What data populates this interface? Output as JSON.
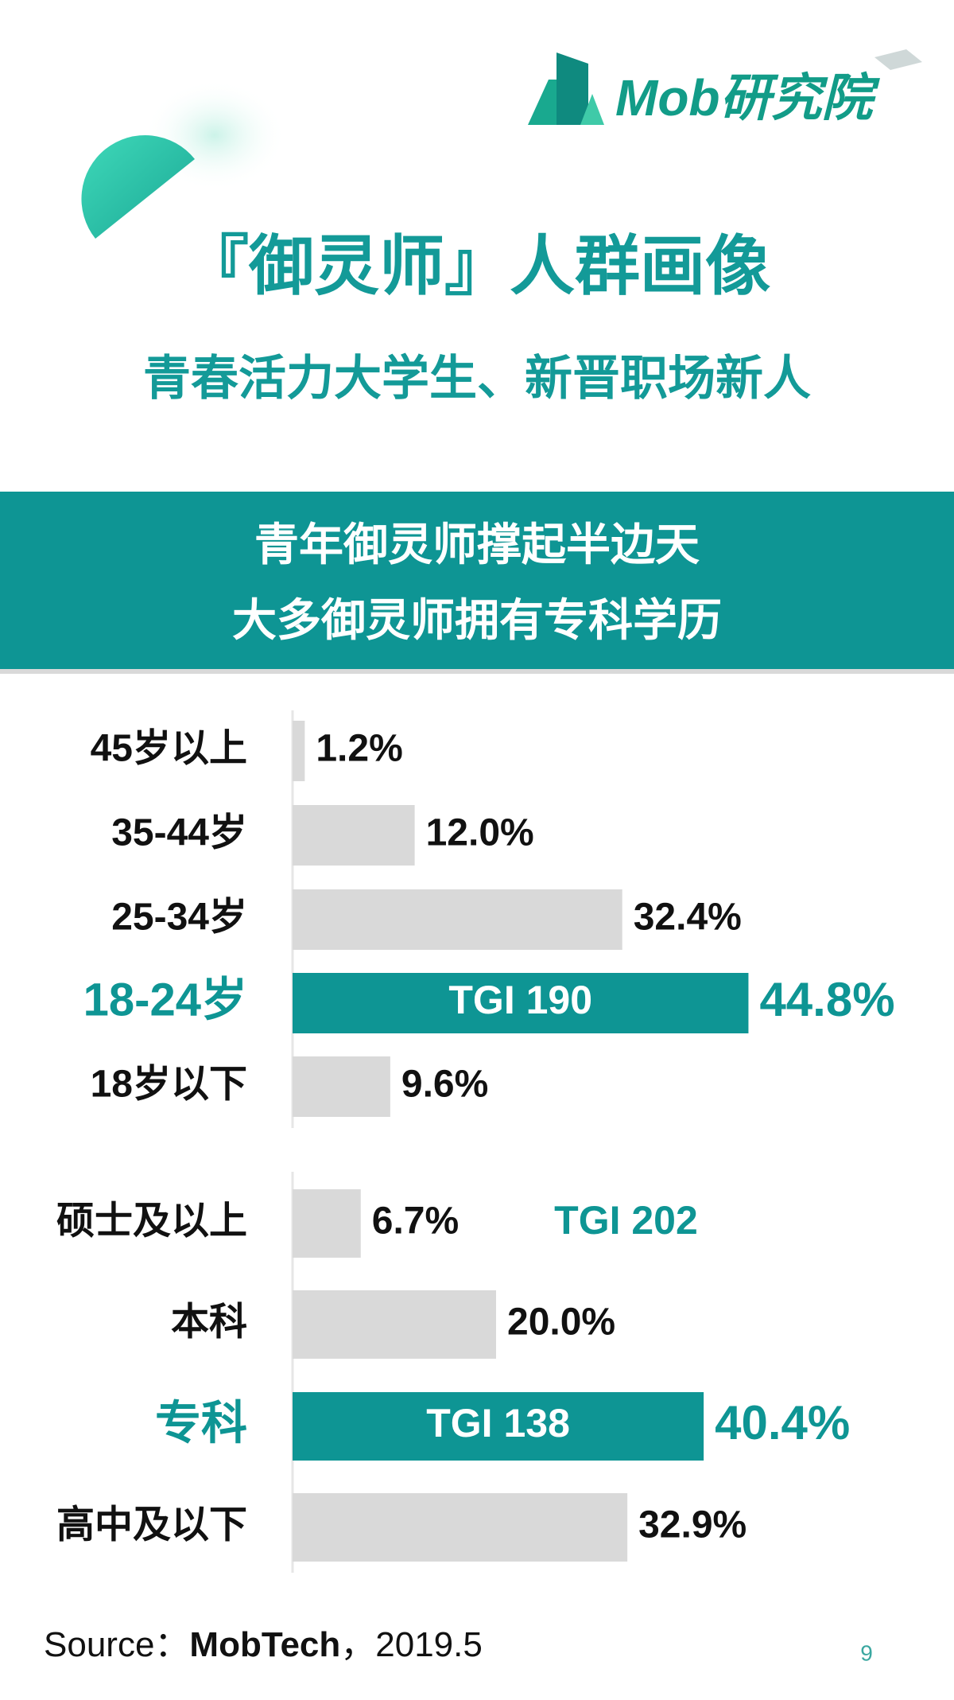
{
  "logo": "Mob研究院",
  "title": "『御灵师』人群画像",
  "subtitle": "青春活力大学生、新晋职场新人",
  "banner": [
    "青年御灵师撑起半边天",
    "大多御灵师拥有专科学历"
  ],
  "chart_data": [
    {
      "type": "bar",
      "orientation": "horizontal",
      "categories": [
        "45岁以上",
        "35-44岁",
        "25-34岁",
        "18-24岁",
        "18岁以下"
      ],
      "values": [
        1.2,
        12.0,
        32.4,
        44.8,
        9.6
      ],
      "value_labels": [
        "1.2%",
        "12.0%",
        "32.4%",
        "44.8%",
        "9.6%"
      ],
      "colors": [
        "#d9d9d9",
        "#d9d9d9",
        "#d9d9d9",
        "#0e9594",
        "#d9d9d9"
      ],
      "annotations": [
        {
          "text": "TGI 190",
          "category": "18-24岁"
        }
      ]
    },
    {
      "type": "bar",
      "orientation": "horizontal",
      "categories": [
        "硕士及以上",
        "本科",
        "专科",
        "高中及以下"
      ],
      "values": [
        6.7,
        20.0,
        40.4,
        32.9
      ],
      "value_labels": [
        "6.7%",
        "20.0%",
        "40.4%",
        "32.9%"
      ],
      "colors": [
        "#d9d9d9",
        "#d9d9d9",
        "#0e9594",
        "#d9d9d9"
      ],
      "annotations": [
        {
          "text": "TGI 202",
          "category": "硕士及以上"
        },
        {
          "text": "TGI 138",
          "category": "专科"
        }
      ]
    }
  ],
  "source": {
    "label": "Source：",
    "name": "MobTech",
    "date": "，2019.5"
  },
  "page_number": "9"
}
